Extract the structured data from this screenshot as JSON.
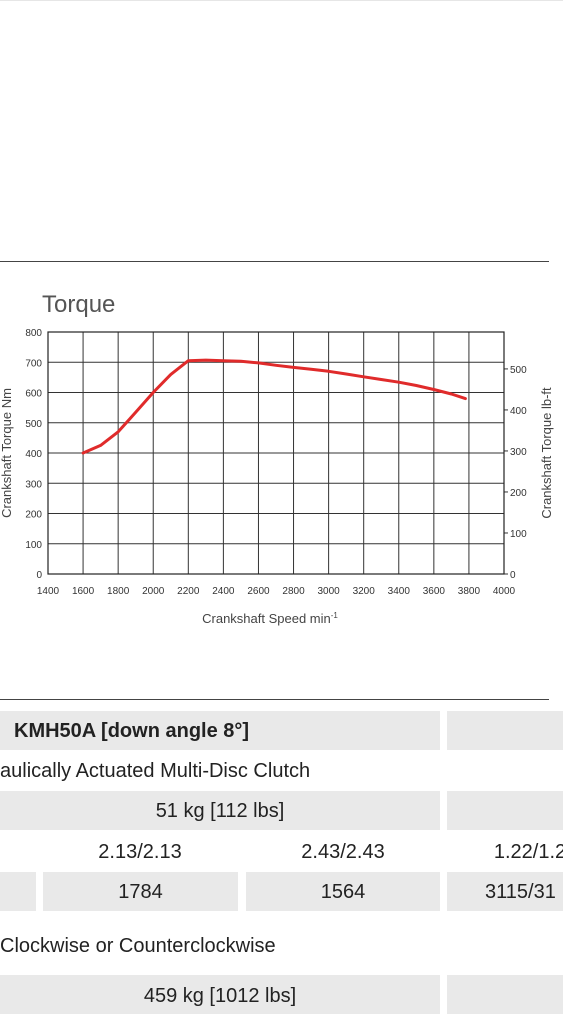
{
  "chart_data": {
    "type": "line",
    "title": "Torque",
    "xlabel": "Crankshaft Speed min",
    "xlabel_superscript": "-1",
    "ylabel_left": "Crankshaft Torque  Nm",
    "ylabel_right": "Crankshaft Torque  lb-ft",
    "xlim": [
      1400,
      4000
    ],
    "ylim": [
      0,
      800
    ],
    "ylim_right": [
      0,
      590
    ],
    "x_ticks": [
      "1400",
      "1600",
      "1800",
      "2000",
      "2200",
      "2400",
      "2600",
      "2800",
      "3000",
      "3200",
      "3400",
      "3600",
      "3800",
      "4000"
    ],
    "y_ticks_left": [
      "0",
      "100",
      "200",
      "300",
      "400",
      "500",
      "600",
      "700",
      "800"
    ],
    "y_ticks_right": [
      "0",
      "100",
      "200",
      "300",
      "400",
      "500"
    ],
    "grid": true,
    "series": [
      {
        "color": "#e02b2b",
        "x": [
          1600,
          1700,
          1800,
          1900,
          2000,
          2100,
          2200,
          2300,
          2400,
          2500,
          2600,
          2700,
          2800,
          2900,
          3000,
          3100,
          3200,
          3300,
          3400,
          3500,
          3600,
          3700,
          3780
        ],
        "y": [
          400,
          425,
          470,
          535,
          600,
          660,
          705,
          707,
          705,
          703,
          698,
          690,
          683,
          677,
          670,
          661,
          652,
          643,
          634,
          623,
          610,
          595,
          580
        ]
      }
    ]
  },
  "table": {
    "model_label": "KMH50A [down angle 8°]",
    "clutch_text": "aulically Actuated Multi-Disc Clutch",
    "weight_dry": "51 kg [112 lbs]",
    "ratio_1": "2.13/2.13",
    "ratio_2": "2.43/2.43",
    "ratio_3": "1.22/1.2",
    "value_1": "1784",
    "value_2": "1564",
    "value_3": "3115/31",
    "rotation_text": "Clockwise or Counterclockwise",
    "weight_total": "459 kg [1012 lbs]"
  },
  "colors": {
    "curve": "#e02b2b",
    "grid": "#333333",
    "cell": "#e9e9e9"
  }
}
